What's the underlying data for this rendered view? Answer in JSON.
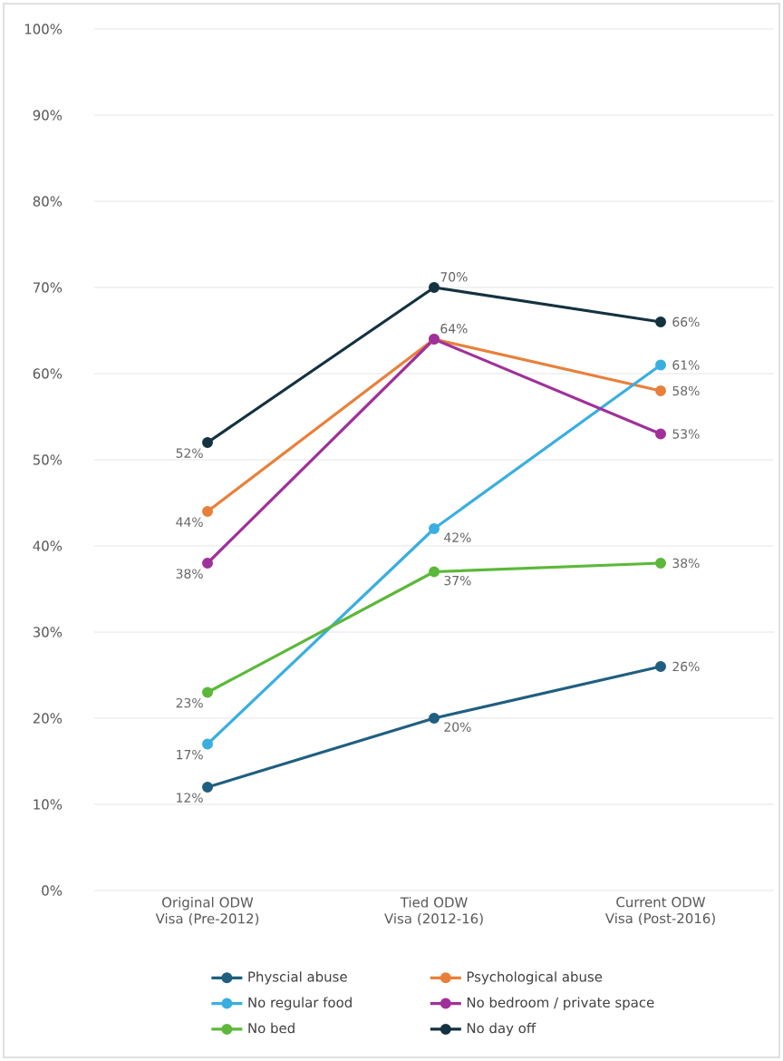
{
  "chart_data": {
    "type": "line",
    "categories": [
      "Original ODW Visa (Pre-2012)",
      "Tied ODW Visa (2012-16)",
      "Current ODW Visa (Post-2016)"
    ],
    "series": [
      {
        "name": "Physcial abuse",
        "color": "#1f5f80",
        "values": [
          12,
          20,
          26
        ],
        "value_labels": [
          "12%",
          "20%",
          "26%"
        ]
      },
      {
        "name": "Psychological abuse",
        "color": "#e8803a",
        "values": [
          44,
          64,
          58
        ],
        "value_labels": [
          "44%",
          "64%",
          "58%"
        ]
      },
      {
        "name": "No regular food",
        "color": "#3aaee0",
        "values": [
          17,
          42,
          61
        ],
        "value_labels": [
          "17%",
          "42%",
          "61%"
        ]
      },
      {
        "name": "No bedroom / private space",
        "color": "#a0309a",
        "values": [
          38,
          64,
          53
        ],
        "value_labels": [
          "38%",
          null,
          "53%"
        ]
      },
      {
        "name": "No bed",
        "color": "#5cb83a",
        "values": [
          23,
          37,
          38
        ],
        "value_labels": [
          "23%",
          "37%",
          "38%"
        ]
      },
      {
        "name": "No day off",
        "color": "#143240",
        "values": [
          52,
          70,
          66
        ],
        "value_labels": [
          "52%",
          "70%",
          "66%"
        ]
      }
    ],
    "ylim": [
      0,
      100
    ],
    "yticks": [
      {
        "value": 0,
        "label": "0%"
      },
      {
        "value": 10,
        "label": "10%"
      },
      {
        "value": 20,
        "label": "20%"
      },
      {
        "value": 30,
        "label": "30%"
      },
      {
        "value": 40,
        "label": "40%"
      },
      {
        "value": 50,
        "label": "50%"
      },
      {
        "value": 60,
        "label": "60%"
      },
      {
        "value": 70,
        "label": "70%"
      },
      {
        "value": 80,
        "label": "80%"
      },
      {
        "value": 90,
        "label": "90%"
      },
      {
        "value": 100,
        "label": "100%"
      }
    ],
    "grid": "y",
    "legend": "bottom",
    "marker": "circle",
    "line_style": "solid"
  }
}
